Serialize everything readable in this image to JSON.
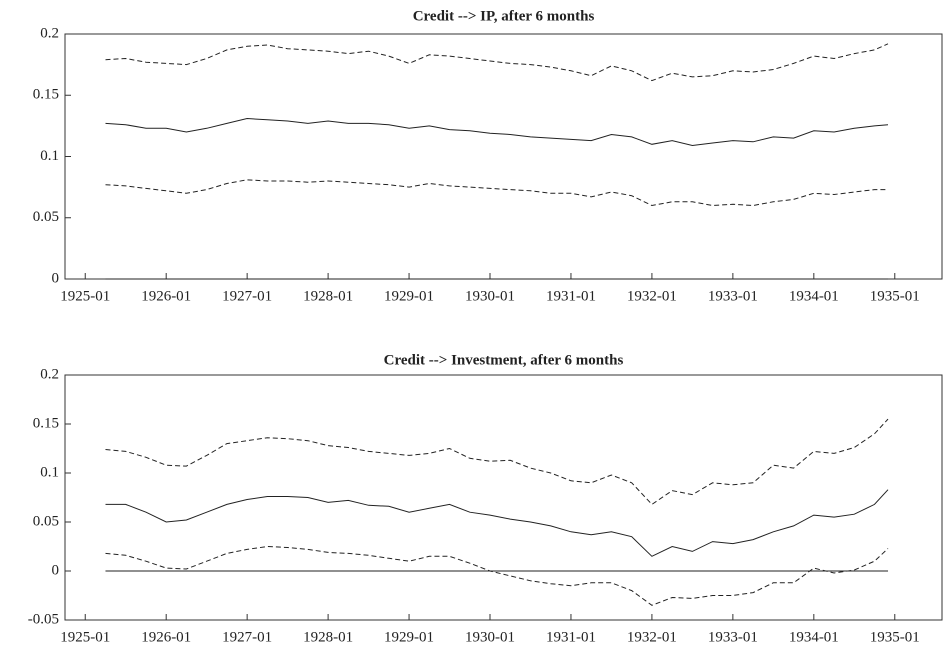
{
  "chart_data": [
    {
      "type": "line",
      "title": "Credit --> IP, after 6 months",
      "x": [
        "1925-04",
        "1925-07",
        "1925-10",
        "1926-01",
        "1926-04",
        "1926-07",
        "1926-10",
        "1927-01",
        "1927-04",
        "1927-07",
        "1927-10",
        "1928-01",
        "1928-04",
        "1928-07",
        "1928-10",
        "1929-01",
        "1929-04",
        "1929-07",
        "1929-10",
        "1930-01",
        "1930-04",
        "1930-07",
        "1930-10",
        "1931-01",
        "1931-04",
        "1931-07",
        "1931-10",
        "1932-01",
        "1932-04",
        "1932-07",
        "1932-10",
        "1933-01",
        "1933-04",
        "1933-07",
        "1933-10",
        "1934-01",
        "1934-04",
        "1934-07",
        "1934-10",
        "1934-12"
      ],
      "series": [
        {
          "style": "solid",
          "color": "#222222",
          "values": [
            0.127,
            0.126,
            0.123,
            0.123,
            0.12,
            0.123,
            0.127,
            0.131,
            0.13,
            0.129,
            0.127,
            0.129,
            0.127,
            0.127,
            0.126,
            0.123,
            0.125,
            0.122,
            0.121,
            0.119,
            0.118,
            0.116,
            0.115,
            0.114,
            0.113,
            0.118,
            0.116,
            0.11,
            0.113,
            0.109,
            0.111,
            0.113,
            0.112,
            0.116,
            0.115,
            0.121,
            0.12,
            0.123,
            0.125,
            0.126
          ]
        },
        {
          "style": "dashed",
          "color": "#222222",
          "values": [
            0.179,
            0.18,
            0.177,
            0.176,
            0.175,
            0.18,
            0.187,
            0.19,
            0.191,
            0.188,
            0.187,
            0.186,
            0.184,
            0.186,
            0.182,
            0.176,
            0.183,
            0.182,
            0.18,
            0.178,
            0.176,
            0.175,
            0.173,
            0.17,
            0.166,
            0.174,
            0.17,
            0.162,
            0.168,
            0.165,
            0.166,
            0.17,
            0.169,
            0.171,
            0.176,
            0.182,
            0.18,
            0.184,
            0.187,
            0.192
          ]
        },
        {
          "style": "dashed",
          "color": "#222222",
          "values": [
            0.077,
            0.076,
            0.074,
            0.072,
            0.07,
            0.073,
            0.078,
            0.081,
            0.08,
            0.08,
            0.079,
            0.08,
            0.079,
            0.078,
            0.077,
            0.075,
            0.078,
            0.076,
            0.075,
            0.074,
            0.073,
            0.072,
            0.07,
            0.07,
            0.067,
            0.071,
            0.068,
            0.06,
            0.063,
            0.063,
            0.06,
            0.061,
            0.06,
            0.063,
            0.065,
            0.07,
            0.069,
            0.071,
            0.073,
            0.073
          ]
        }
      ],
      "reference_line": 0,
      "xlim": [
        "1924-10",
        "1935-08"
      ],
      "xticks": [
        "1925-01",
        "1926-01",
        "1927-01",
        "1928-01",
        "1929-01",
        "1930-01",
        "1931-01",
        "1932-01",
        "1933-01",
        "1934-01",
        "1935-01"
      ],
      "ylim": [
        0,
        0.2
      ],
      "yticks": [
        0,
        0.05,
        0.1,
        0.15,
        0.2
      ]
    },
    {
      "type": "line",
      "title": "Credit --> Investment, after 6 months",
      "x": [
        "1925-04",
        "1925-07",
        "1925-10",
        "1926-01",
        "1926-04",
        "1926-07",
        "1926-10",
        "1927-01",
        "1927-04",
        "1927-07",
        "1927-10",
        "1928-01",
        "1928-04",
        "1928-07",
        "1928-10",
        "1929-01",
        "1929-04",
        "1929-07",
        "1929-10",
        "1930-01",
        "1930-04",
        "1930-07",
        "1930-10",
        "1931-01",
        "1931-04",
        "1931-07",
        "1931-10",
        "1932-01",
        "1932-04",
        "1932-07",
        "1932-10",
        "1933-01",
        "1933-04",
        "1933-07",
        "1933-10",
        "1934-01",
        "1934-04",
        "1934-07",
        "1934-10",
        "1934-12"
      ],
      "series": [
        {
          "style": "solid",
          "color": "#222222",
          "values": [
            0.068,
            0.068,
            0.06,
            0.05,
            0.052,
            0.06,
            0.068,
            0.073,
            0.076,
            0.076,
            0.075,
            0.07,
            0.072,
            0.067,
            0.066,
            0.06,
            0.064,
            0.068,
            0.06,
            0.057,
            0.053,
            0.05,
            0.046,
            0.04,
            0.037,
            0.04,
            0.035,
            0.015,
            0.025,
            0.02,
            0.03,
            0.028,
            0.032,
            0.04,
            0.046,
            0.057,
            0.055,
            0.058,
            0.068,
            0.083
          ]
        },
        {
          "style": "dashed",
          "color": "#222222",
          "values": [
            0.124,
            0.122,
            0.116,
            0.108,
            0.107,
            0.118,
            0.13,
            0.133,
            0.136,
            0.135,
            0.133,
            0.128,
            0.126,
            0.122,
            0.12,
            0.118,
            0.12,
            0.125,
            0.115,
            0.112,
            0.113,
            0.105,
            0.1,
            0.092,
            0.09,
            0.098,
            0.09,
            0.068,
            0.082,
            0.078,
            0.09,
            0.088,
            0.09,
            0.108,
            0.105,
            0.122,
            0.12,
            0.126,
            0.14,
            0.155
          ]
        },
        {
          "style": "dashed",
          "color": "#222222",
          "values": [
            0.018,
            0.016,
            0.01,
            0.003,
            0.002,
            0.01,
            0.018,
            0.022,
            0.025,
            0.024,
            0.022,
            0.019,
            0.018,
            0.016,
            0.013,
            0.01,
            0.015,
            0.015,
            0.008,
            0.0,
            -0.005,
            -0.01,
            -0.013,
            -0.015,
            -0.012,
            -0.012,
            -0.02,
            -0.035,
            -0.027,
            -0.028,
            -0.025,
            -0.025,
            -0.022,
            -0.012,
            -0.012,
            0.003,
            -0.002,
            0.001,
            0.01,
            0.023
          ]
        }
      ],
      "reference_line": 0,
      "xlim": [
        "1924-10",
        "1935-08"
      ],
      "xticks": [
        "1925-01",
        "1926-01",
        "1927-01",
        "1928-01",
        "1929-01",
        "1930-01",
        "1931-01",
        "1932-01",
        "1933-01",
        "1934-01",
        "1935-01"
      ],
      "ylim": [
        -0.05,
        0.2
      ],
      "yticks": [
        -0.05,
        0,
        0.05,
        0.1,
        0.15,
        0.2
      ]
    }
  ]
}
